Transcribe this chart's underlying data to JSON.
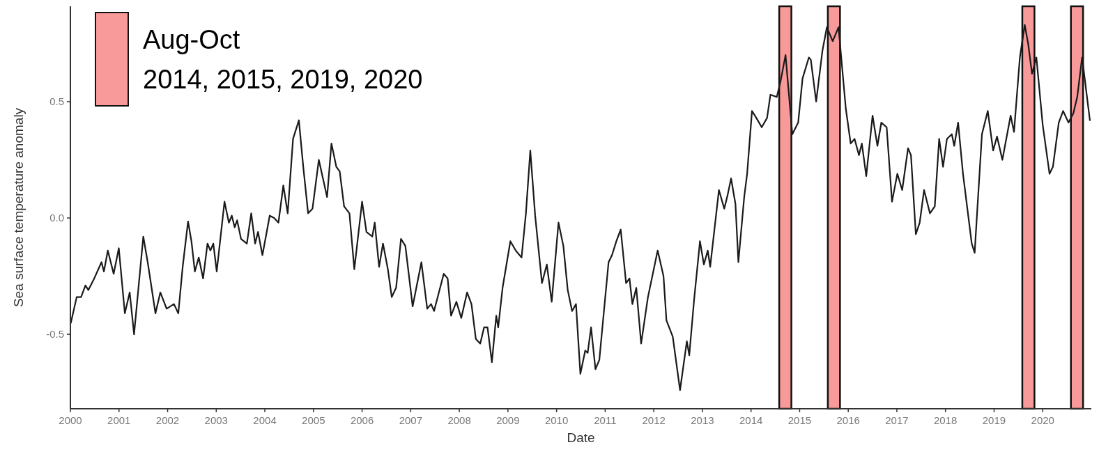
{
  "chart_data": {
    "type": "line",
    "xlabel": "Date",
    "ylabel": "Sea surface temperature anomaly",
    "legend_title": "Aug-Oct",
    "legend": "top left",
    "grid": false,
    "xlim": [
      2000,
      2021
    ],
    "xticks": [
      2000,
      2001,
      2002,
      2003,
      2004,
      2005,
      2006,
      2007,
      2008,
      2009,
      2010,
      2011,
      2012,
      2013,
      2014,
      2015,
      2016,
      2017,
      2018,
      2019,
      2020
    ],
    "ylim": [
      -0.82,
      0.91
    ],
    "yticks": [
      {
        "value": -0.5,
        "label": "-0.5"
      },
      {
        "value": 0,
        "label": "0.0"
      },
      {
        "value": 0.5,
        "label": "0.5"
      }
    ],
    "bands": [
      {
        "axis": "x",
        "from": 2014.58,
        "to": 2014.83,
        "label": "2014, 2015, 2019, 2020",
        "color": "#f8999a"
      },
      {
        "axis": "x",
        "from": 2015.58,
        "to": 2015.83,
        "color": "#f8999a"
      },
      {
        "axis": "x",
        "from": 2019.58,
        "to": 2019.83,
        "color": "#f8999a"
      },
      {
        "axis": "x",
        "from": 2020.58,
        "to": 2020.83,
        "color": "#f8999a"
      }
    ],
    "series": [
      {
        "color": "#1a1a1a",
        "x": [
          2000.01,
          2000.13,
          2000.22,
          2000.31,
          2000.37,
          2000.49,
          2000.64,
          2000.69,
          2000.77,
          2000.89,
          2000.996,
          2001.12,
          2001.22,
          2001.31,
          2001.5,
          2001.59,
          2001.75,
          2001.85,
          2001.98,
          2002.13,
          2002.22,
          2002.31,
          2002.42,
          2002.49,
          2002.56,
          2002.64,
          2002.73,
          2002.82,
          2002.88,
          2002.94,
          2003.01,
          2003.17,
          2003.26,
          2003.32,
          2003.38,
          2003.43,
          2003.51,
          2003.63,
          2003.72,
          2003.8,
          2003.86,
          2003.95,
          2004.1,
          2004.19,
          2004.28,
          2004.38,
          2004.47,
          2004.58,
          2004.7,
          2004.79,
          2004.89,
          2004.98,
          2005.11,
          2005.28,
          2005.37,
          2005.47,
          2005.54,
          2005.63,
          2005.74,
          2005.84,
          2006.0,
          2006.09,
          2006.21,
          2006.26,
          2006.35,
          2006.43,
          2006.53,
          2006.61,
          2006.7,
          2006.8,
          2006.89,
          2007.04,
          2007.22,
          2007.34,
          2007.42,
          2007.48,
          2007.58,
          2007.68,
          2007.76,
          2007.83,
          2007.94,
          2008.04,
          2008.16,
          2008.25,
          2008.34,
          2008.43,
          2008.51,
          2008.58,
          2008.67,
          2008.76,
          2008.8,
          2008.89,
          2009.05,
          2009.16,
          2009.28,
          2009.37,
          2009.46,
          2009.56,
          2009.7,
          2009.8,
          2009.9,
          2010.04,
          2010.14,
          2010.23,
          2010.32,
          2010.4,
          2010.49,
          2010.59,
          2010.64,
          2010.71,
          2010.8,
          2010.88,
          2011.07,
          2011.14,
          2011.23,
          2011.32,
          2011.43,
          2011.5,
          2011.56,
          2011.64,
          2011.74,
          2011.88,
          2012.08,
          2012.2,
          2012.26,
          2012.39,
          2012.54,
          2012.68,
          2012.73,
          2012.83,
          2012.95,
          2013.03,
          2013.11,
          2013.16,
          2013.34,
          2013.45,
          2013.52,
          2013.59,
          2013.68,
          2013.74,
          2013.86,
          2013.92,
          2014.02,
          2014.11,
          2014.22,
          2014.33,
          2014.4,
          2014.53,
          2014.61,
          2014.71,
          2014.85,
          2014.97,
          2015.06,
          2015.19,
          2015.23,
          2015.34,
          2015.47,
          2015.56,
          2015.68,
          2015.8,
          2015.95,
          2016.05,
          2016.13,
          2016.22,
          2016.28,
          2016.37,
          2016.5,
          2016.6,
          2016.68,
          2016.79,
          2016.9,
          2017.01,
          2017.11,
          2017.23,
          2017.29,
          2017.39,
          2017.47,
          2017.56,
          2017.68,
          2017.78,
          2017.87,
          2017.95,
          2018.03,
          2018.13,
          2018.18,
          2018.26,
          2018.36,
          2018.54,
          2018.6,
          2018.75,
          2018.87,
          2018.98,
          2019.06,
          2019.17,
          2019.34,
          2019.41,
          2019.53,
          2019.63,
          2019.7,
          2019.78,
          2019.87,
          2020.0,
          2020.14,
          2020.21,
          2020.33,
          2020.42,
          2020.53,
          2020.63,
          2020.71,
          2020.81,
          2020.97
        ],
        "values": [
          -0.45,
          -0.34,
          -0.34,
          -0.29,
          -0.31,
          -0.26,
          -0.19,
          -0.23,
          -0.14,
          -0.24,
          -0.13,
          -0.41,
          -0.32,
          -0.5,
          -0.08,
          -0.19,
          -0.41,
          -0.32,
          -0.39,
          -0.37,
          -0.41,
          -0.21,
          -0.015,
          -0.1,
          -0.23,
          -0.17,
          -0.26,
          -0.11,
          -0.14,
          -0.11,
          -0.23,
          0.07,
          -0.02,
          0.01,
          -0.04,
          -0.01,
          -0.09,
          -0.11,
          0.02,
          -0.11,
          -0.06,
          -0.16,
          0.01,
          0.0,
          -0.02,
          0.14,
          0.02,
          0.34,
          0.42,
          0.22,
          0.02,
          0.04,
          0.25,
          0.09,
          0.32,
          0.22,
          0.2,
          0.05,
          0.02,
          -0.22,
          0.07,
          -0.06,
          -0.08,
          -0.02,
          -0.21,
          -0.11,
          -0.22,
          -0.34,
          -0.3,
          -0.09,
          -0.12,
          -0.38,
          -0.19,
          -0.39,
          -0.37,
          -0.4,
          -0.32,
          -0.24,
          -0.26,
          -0.42,
          -0.36,
          -0.43,
          -0.32,
          -0.37,
          -0.52,
          -0.54,
          -0.47,
          -0.47,
          -0.62,
          -0.42,
          -0.47,
          -0.3,
          -0.1,
          -0.14,
          -0.17,
          0.02,
          0.29,
          0.01,
          -0.28,
          -0.2,
          -0.36,
          -0.02,
          -0.12,
          -0.31,
          -0.4,
          -0.37,
          -0.67,
          -0.57,
          -0.58,
          -0.47,
          -0.65,
          -0.61,
          -0.19,
          -0.16,
          -0.1,
          -0.05,
          -0.28,
          -0.26,
          -0.37,
          -0.3,
          -0.54,
          -0.34,
          -0.14,
          -0.25,
          -0.44,
          -0.51,
          -0.74,
          -0.53,
          -0.59,
          -0.35,
          -0.1,
          -0.2,
          -0.14,
          -0.21,
          0.12,
          0.04,
          0.1,
          0.17,
          0.06,
          -0.19,
          0.09,
          0.19,
          0.46,
          0.43,
          0.39,
          0.43,
          0.53,
          0.52,
          0.59,
          0.7,
          0.36,
          0.41,
          0.6,
          0.69,
          0.68,
          0.5,
          0.72,
          0.82,
          0.76,
          0.82,
          0.47,
          0.32,
          0.34,
          0.27,
          0.32,
          0.18,
          0.44,
          0.31,
          0.41,
          0.39,
          0.07,
          0.19,
          0.12,
          0.3,
          0.27,
          -0.07,
          -0.02,
          0.12,
          0.02,
          0.05,
          0.34,
          0.22,
          0.34,
          0.36,
          0.31,
          0.41,
          0.19,
          -0.11,
          -0.15,
          0.36,
          0.46,
          0.29,
          0.35,
          0.25,
          0.44,
          0.37,
          0.69,
          0.83,
          0.75,
          0.62,
          0.69,
          0.4,
          0.19,
          0.22,
          0.41,
          0.46,
          0.41,
          0.45,
          0.52,
          0.69,
          0.42
        ]
      }
    ]
  }
}
